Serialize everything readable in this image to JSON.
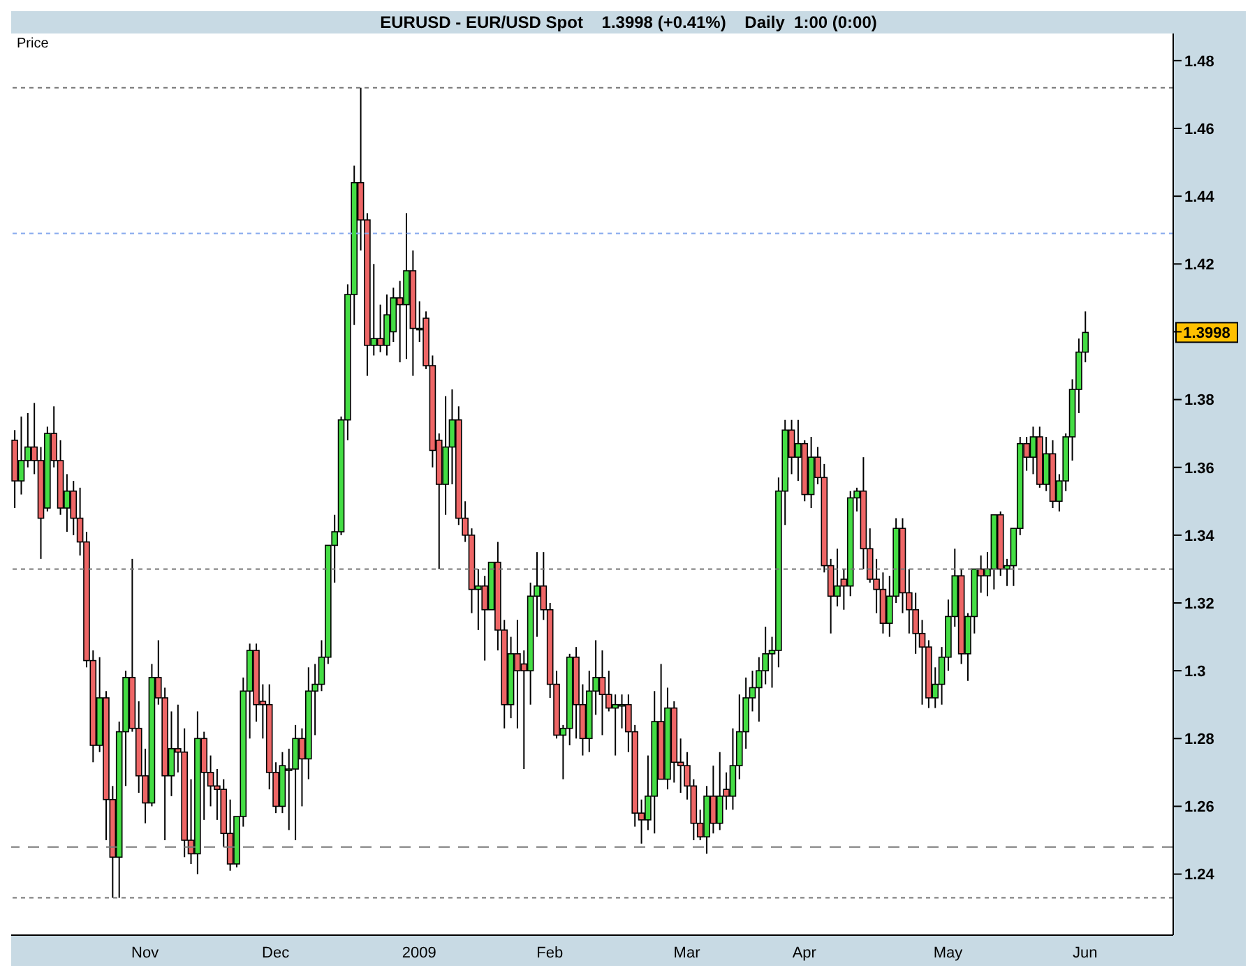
{
  "chart_data": {
    "type": "candlestick",
    "title": "EURUSD - EUR/USD Spot    1.3998 (+0.41%)    Daily  1:00 (0:00)",
    "ylabel": "Price",
    "categories": [
      null,
      null,
      null,
      null,
      null,
      null,
      null,
      null,
      null,
      null,
      null,
      null,
      null,
      null,
      null,
      null,
      null,
      null,
      null,
      null,
      "Nov",
      null,
      null,
      null,
      null,
      null,
      null,
      null,
      null,
      null,
      null,
      null,
      null,
      null,
      null,
      null,
      null,
      null,
      null,
      null,
      "Dec",
      null,
      null,
      null,
      null,
      null,
      null,
      null,
      null,
      null,
      null,
      null,
      null,
      null,
      null,
      null,
      null,
      null,
      null,
      null,
      null,
      null,
      "2009",
      null,
      null,
      null,
      null,
      null,
      null,
      null,
      null,
      null,
      null,
      null,
      null,
      null,
      null,
      null,
      null,
      null,
      null,
      null,
      "Feb",
      null,
      null,
      null,
      null,
      null,
      null,
      null,
      null,
      null,
      null,
      null,
      null,
      null,
      null,
      null,
      null,
      null,
      null,
      null,
      null,
      "Mar",
      null,
      null,
      null,
      null,
      null,
      null,
      null,
      null,
      null,
      null,
      null,
      null,
      null,
      null,
      null,
      null,
      null,
      "Apr",
      null,
      null,
      null,
      null,
      null,
      null,
      null,
      null,
      null,
      null,
      null,
      null,
      null,
      null,
      null,
      null,
      null,
      null,
      null,
      null,
      null,
      "May",
      null,
      null,
      null,
      null,
      null,
      null,
      null,
      null,
      null,
      null,
      null,
      null,
      null,
      null,
      null,
      null,
      null,
      null,
      null,
      null,
      "Jun",
      null,
      null,
      null,
      null,
      null,
      null,
      null,
      null,
      null,
      null,
      null,
      null,
      null
    ],
    "ohlc": [
      [
        1.368,
        1.371,
        1.348,
        1.356
      ],
      [
        1.356,
        1.375,
        1.352,
        1.362
      ],
      [
        1.362,
        1.376,
        1.36,
        1.366
      ],
      [
        1.366,
        1.379,
        1.358,
        1.362
      ],
      [
        1.362,
        1.366,
        1.333,
        1.345
      ],
      [
        1.348,
        1.372,
        1.347,
        1.37
      ],
      [
        1.37,
        1.378,
        1.36,
        1.362
      ],
      [
        1.362,
        1.368,
        1.346,
        1.348
      ],
      [
        1.348,
        1.358,
        1.341,
        1.353
      ],
      [
        1.353,
        1.356,
        1.34,
        1.345
      ],
      [
        1.345,
        1.354,
        1.334,
        1.338
      ],
      [
        1.338,
        1.341,
        1.301,
        1.303
      ],
      [
        1.303,
        1.306,
        1.273,
        1.278
      ],
      [
        1.278,
        1.304,
        1.276,
        1.292
      ],
      [
        1.292,
        1.294,
        1.25,
        1.262
      ],
      [
        1.262,
        1.266,
        1.233,
        1.245
      ],
      [
        1.245,
        1.285,
        1.233,
        1.282
      ],
      [
        1.282,
        1.3,
        1.266,
        1.298
      ],
      [
        1.298,
        1.333,
        1.282,
        1.283
      ],
      [
        1.283,
        1.291,
        1.264,
        1.269
      ],
      [
        1.269,
        1.277,
        1.255,
        1.261
      ],
      [
        1.261,
        1.302,
        1.26,
        1.298
      ],
      [
        1.298,
        1.309,
        1.29,
        1.292
      ],
      [
        1.292,
        1.295,
        1.25,
        1.269
      ],
      [
        1.269,
        1.288,
        1.263,
        1.277
      ],
      [
        1.277,
        1.29,
        1.27,
        1.276
      ],
      [
        1.276,
        1.283,
        1.245,
        1.25
      ],
      [
        1.25,
        1.268,
        1.243,
        1.246
      ],
      [
        1.246,
        1.288,
        1.24,
        1.28
      ],
      [
        1.28,
        1.282,
        1.256,
        1.27
      ],
      [
        1.27,
        1.275,
        1.26,
        1.266
      ],
      [
        1.266,
        1.271,
        1.256,
        1.265
      ],
      [
        1.265,
        1.268,
        1.248,
        1.252
      ],
      [
        1.252,
        1.262,
        1.241,
        1.243
      ],
      [
        1.243,
        1.257,
        1.242,
        1.257
      ],
      [
        1.257,
        1.298,
        1.254,
        1.294
      ],
      [
        1.294,
        1.308,
        1.28,
        1.306
      ],
      [
        1.306,
        1.308,
        1.285,
        1.29
      ],
      [
        1.291,
        1.296,
        1.28,
        1.29
      ],
      [
        1.29,
        1.296,
        1.265,
        1.27
      ],
      [
        1.27,
        1.273,
        1.258,
        1.26
      ],
      [
        1.26,
        1.276,
        1.258,
        1.272
      ],
      [
        1.271,
        1.277,
        1.253,
        1.271
      ],
      [
        1.271,
        1.284,
        1.25,
        1.28
      ],
      [
        1.28,
        1.283,
        1.26,
        1.274
      ],
      [
        1.274,
        1.301,
        1.268,
        1.294
      ],
      [
        1.294,
        1.302,
        1.281,
        1.296
      ],
      [
        1.296,
        1.309,
        1.294,
        1.304
      ],
      [
        1.304,
        1.337,
        1.302,
        1.337
      ],
      [
        1.337,
        1.346,
        1.326,
        1.341
      ],
      [
        1.341,
        1.375,
        1.34,
        1.374
      ],
      [
        1.374,
        1.414,
        1.368,
        1.411
      ],
      [
        1.411,
        1.449,
        1.402,
        1.444
      ],
      [
        1.444,
        1.472,
        1.424,
        1.433
      ],
      [
        1.433,
        1.435,
        1.387,
        1.396
      ],
      [
        1.396,
        1.42,
        1.393,
        1.398
      ],
      [
        1.398,
        1.408,
        1.394,
        1.396
      ],
      [
        1.396,
        1.411,
        1.393,
        1.405
      ],
      [
        1.4,
        1.413,
        1.397,
        1.41
      ],
      [
        1.41,
        1.415,
        1.391,
        1.408
      ],
      [
        1.408,
        1.435,
        1.392,
        1.418
      ],
      [
        1.418,
        1.424,
        1.387,
        1.401
      ],
      [
        1.401,
        1.409,
        1.397,
        1.401
      ],
      [
        1.404,
        1.406,
        1.389,
        1.39
      ],
      [
        1.39,
        1.393,
        1.36,
        1.365
      ],
      [
        1.368,
        1.37,
        1.33,
        1.355
      ],
      [
        1.355,
        1.381,
        1.346,
        1.366
      ],
      [
        1.366,
        1.383,
        1.355,
        1.374
      ],
      [
        1.374,
        1.378,
        1.343,
        1.345
      ],
      [
        1.345,
        1.35,
        1.338,
        1.34
      ],
      [
        1.34,
        1.342,
        1.317,
        1.324
      ],
      [
        1.324,
        1.33,
        1.312,
        1.325
      ],
      [
        1.325,
        1.328,
        1.303,
        1.318
      ],
      [
        1.318,
        1.332,
        1.318,
        1.332
      ],
      [
        1.332,
        1.338,
        1.306,
        1.312
      ],
      [
        1.312,
        1.315,
        1.283,
        1.29
      ],
      [
        1.29,
        1.31,
        1.286,
        1.305
      ],
      [
        1.305,
        1.315,
        1.283,
        1.3
      ],
      [
        1.302,
        1.306,
        1.271,
        1.3
      ],
      [
        1.3,
        1.326,
        1.29,
        1.322
      ],
      [
        1.322,
        1.335,
        1.31,
        1.325
      ],
      [
        1.325,
        1.335,
        1.315,
        1.318
      ],
      [
        1.318,
        1.32,
        1.292,
        1.296
      ],
      [
        1.296,
        1.3,
        1.28,
        1.281
      ],
      [
        1.281,
        1.284,
        1.268,
        1.283
      ],
      [
        1.283,
        1.305,
        1.278,
        1.304
      ],
      [
        1.304,
        1.307,
        1.28,
        1.29
      ],
      [
        1.29,
        1.296,
        1.275,
        1.28
      ],
      [
        1.28,
        1.3,
        1.276,
        1.294
      ],
      [
        1.294,
        1.309,
        1.287,
        1.298
      ],
      [
        1.298,
        1.306,
        1.281,
        1.293
      ],
      [
        1.293,
        1.3,
        1.288,
        1.289
      ],
      [
        1.289,
        1.293,
        1.275,
        1.29
      ],
      [
        1.29,
        1.293,
        1.283,
        1.29
      ],
      [
        1.29,
        1.293,
        1.276,
        1.282
      ],
      [
        1.282,
        1.284,
        1.254,
        1.258
      ],
      [
        1.258,
        1.262,
        1.249,
        1.256
      ],
      [
        1.256,
        1.275,
        1.253,
        1.263
      ],
      [
        1.263,
        1.294,
        1.252,
        1.285
      ],
      [
        1.285,
        1.302,
        1.268,
        1.268
      ],
      [
        1.268,
        1.295,
        1.265,
        1.289
      ],
      [
        1.289,
        1.291,
        1.267,
        1.273
      ],
      [
        1.273,
        1.28,
        1.264,
        1.272
      ],
      [
        1.272,
        1.276,
        1.262,
        1.266
      ],
      [
        1.266,
        1.268,
        1.25,
        1.255
      ],
      [
        1.255,
        1.259,
        1.25,
        1.251
      ],
      [
        1.251,
        1.266,
        1.246,
        1.263
      ],
      [
        1.263,
        1.272,
        1.252,
        1.255
      ],
      [
        1.255,
        1.276,
        1.253,
        1.263
      ],
      [
        1.265,
        1.27,
        1.259,
        1.263
      ],
      [
        1.263,
        1.283,
        1.259,
        1.272
      ],
      [
        1.272,
        1.293,
        1.268,
        1.282
      ],
      [
        1.282,
        1.298,
        1.277,
        1.292
      ],
      [
        1.292,
        1.3,
        1.288,
        1.295
      ],
      [
        1.295,
        1.304,
        1.285,
        1.3
      ],
      [
        1.3,
        1.313,
        1.296,
        1.305
      ],
      [
        1.305,
        1.31,
        1.295,
        1.306
      ],
      [
        1.306,
        1.357,
        1.301,
        1.353
      ],
      [
        1.353,
        1.374,
        1.343,
        1.371
      ],
      [
        1.371,
        1.374,
        1.358,
        1.363
      ],
      [
        1.363,
        1.374,
        1.356,
        1.367
      ],
      [
        1.367,
        1.368,
        1.35,
        1.352
      ],
      [
        1.352,
        1.369,
        1.348,
        1.363
      ],
      [
        1.363,
        1.366,
        1.355,
        1.357
      ],
      [
        1.357,
        1.361,
        1.329,
        1.331
      ],
      [
        1.331,
        1.333,
        1.311,
        1.322
      ],
      [
        1.322,
        1.336,
        1.319,
        1.325
      ],
      [
        1.327,
        1.33,
        1.318,
        1.325
      ],
      [
        1.325,
        1.353,
        1.322,
        1.351
      ],
      [
        1.351,
        1.354,
        1.347,
        1.353
      ],
      [
        1.353,
        1.363,
        1.33,
        1.336
      ],
      [
        1.336,
        1.342,
        1.326,
        1.327
      ],
      [
        1.327,
        1.333,
        1.317,
        1.324
      ],
      [
        1.324,
        1.329,
        1.311,
        1.314
      ],
      [
        1.314,
        1.328,
        1.31,
        1.322
      ],
      [
        1.322,
        1.345,
        1.32,
        1.342
      ],
      [
        1.342,
        1.345,
        1.317,
        1.323
      ],
      [
        1.323,
        1.33,
        1.311,
        1.318
      ],
      [
        1.318,
        1.323,
        1.305,
        1.311
      ],
      [
        1.311,
        1.315,
        1.29,
        1.307
      ],
      [
        1.307,
        1.309,
        1.289,
        1.292
      ],
      [
        1.292,
        1.301,
        1.289,
        1.296
      ],
      [
        1.296,
        1.307,
        1.29,
        1.304
      ],
      [
        1.304,
        1.321,
        1.3,
        1.316
      ],
      [
        1.316,
        1.336,
        1.313,
        1.328
      ],
      [
        1.328,
        1.33,
        1.302,
        1.305
      ],
      [
        1.305,
        1.317,
        1.297,
        1.316
      ],
      [
        1.316,
        1.33,
        1.311,
        1.33
      ],
      [
        1.33,
        1.334,
        1.323,
        1.328
      ],
      [
        1.328,
        1.335,
        1.322,
        1.33
      ],
      [
        1.33,
        1.346,
        1.324,
        1.346
      ],
      [
        1.346,
        1.347,
        1.328,
        1.33
      ],
      [
        1.33,
        1.333,
        1.325,
        1.331
      ],
      [
        1.331,
        1.342,
        1.325,
        1.342
      ],
      [
        1.342,
        1.369,
        1.34,
        1.367
      ],
      [
        1.367,
        1.369,
        1.359,
        1.363
      ],
      [
        1.363,
        1.372,
        1.358,
        1.369
      ],
      [
        1.369,
        1.372,
        1.354,
        1.355
      ],
      [
        1.355,
        1.369,
        1.353,
        1.364
      ],
      [
        1.364,
        1.368,
        1.348,
        1.35
      ],
      [
        1.35,
        1.358,
        1.347,
        1.356
      ],
      [
        1.356,
        1.37,
        1.353,
        1.369
      ],
      [
        1.369,
        1.386,
        1.362,
        1.383
      ],
      [
        1.383,
        1.398,
        1.376,
        1.394
      ],
      [
        1.394,
        1.406,
        1.391,
        1.3998
      ],
      null,
      null,
      null,
      null,
      null,
      null,
      null,
      null,
      null,
      null,
      null,
      null,
      null
    ],
    "colors": [
      "#ee6666",
      "#44dd44",
      "#44dd44",
      "#ee6666",
      "#ee6666",
      "#44dd44",
      "#ee6666",
      "#ee6666",
      "#44dd44",
      "#ee6666",
      "#ee6666",
      "#ee6666",
      "#ee6666",
      "#44dd44",
      "#ee6666",
      "#ee6666",
      "#44dd44",
      "#44dd44",
      "#ee6666",
      "#ee6666",
      "#ee6666",
      "#44dd44",
      "#ee6666",
      "#ee6666",
      "#44dd44",
      "#ee6666",
      "#ee6666",
      "#ee6666",
      "#44dd44",
      "#ee6666",
      "#ee6666",
      "#ee6666",
      "#ee6666",
      "#ee6666",
      "#44dd44",
      "#44dd44",
      "#44dd44",
      "#ee6666",
      "#ee6666",
      "#ee6666",
      "#ee6666",
      "#44dd44",
      "#44dd44",
      "#44dd44",
      "#ee6666",
      "#44dd44",
      "#44dd44",
      "#44dd44",
      "#44dd44",
      "#44dd44",
      "#44dd44",
      "#44dd44",
      "#44dd44",
      "#ee6666",
      "#ee6666",
      "#44dd44",
      "#ee6666",
      "#44dd44",
      "#44dd44",
      "#ee6666",
      "#44dd44",
      "#ee6666",
      "#44dd44",
      "#ee6666",
      "#ee6666",
      "#ee6666",
      "#44dd44",
      "#44dd44",
      "#ee6666",
      "#ee6666",
      "#ee6666",
      "#44dd44",
      "#ee6666",
      "#44dd44",
      "#ee6666",
      "#ee6666",
      "#44dd44",
      "#ee6666",
      "#ee6666",
      "#44dd44",
      "#44dd44",
      "#ee6666",
      "#ee6666",
      "#ee6666",
      "#44dd44",
      "#44dd44",
      "#ee6666",
      "#ee6666",
      "#44dd44",
      "#44dd44",
      "#ee6666",
      "#ee6666",
      "#44dd44",
      "#44dd44",
      "#ee6666",
      "#ee6666",
      "#ee6666",
      "#44dd44",
      "#44dd44",
      "#ee6666",
      "#44dd44",
      "#ee6666",
      "#ee6666",
      "#ee6666",
      "#ee6666",
      "#ee6666",
      "#44dd44",
      "#ee6666",
      "#44dd44",
      "#ee6666",
      "#44dd44",
      "#44dd44",
      "#44dd44",
      "#44dd44",
      "#44dd44",
      "#44dd44",
      "#44dd44",
      "#44dd44",
      "#44dd44",
      "#ee6666",
      "#44dd44",
      "#ee6666",
      "#44dd44",
      "#ee6666",
      "#ee6666",
      "#ee6666",
      "#44dd44",
      "#ee6666",
      "#44dd44",
      "#44dd44",
      "#ee6666",
      "#ee6666",
      "#ee6666",
      "#ee6666",
      "#44dd44",
      "#44dd44",
      "#ee6666",
      "#ee6666",
      "#ee6666",
      "#ee6666",
      "#ee6666",
      "#44dd44",
      "#44dd44",
      "#44dd44",
      "#44dd44",
      "#ee6666",
      "#44dd44",
      "#44dd44",
      "#ee6666",
      "#44dd44",
      "#44dd44",
      "#ee6666",
      "#44dd44",
      "#44dd44",
      "#44dd44",
      "#ee6666",
      "#44dd44",
      "#ee6666",
      "#44dd44",
      "#ee6666",
      "#44dd44",
      "#44dd44",
      "#44dd44",
      "#44dd44",
      "#44dd44",
      null,
      null,
      null,
      null,
      null,
      null,
      null,
      null,
      null,
      null,
      null,
      null,
      null
    ],
    "ylim": [
      1.222,
      1.488
    ],
    "yticks": [
      1.24,
      1.26,
      1.28,
      1.3,
      1.32,
      1.34,
      1.36,
      1.38,
      {
        "value": 1.4,
        "label": null
      },
      1.42,
      1.44,
      1.46,
      1.48
    ],
    "ref_lines": [
      {
        "axis": "y",
        "value": 1.472,
        "line_style": "dotted",
        "color": "#777777"
      },
      {
        "axis": "y",
        "value": 1.429,
        "line_style": "dotted",
        "color": "#88aaee"
      },
      {
        "axis": "y",
        "value": 1.33,
        "line_style": "dotted",
        "color": "#777777"
      },
      {
        "axis": "y",
        "value": 1.248,
        "line_style": "dashed",
        "color": "#777777"
      },
      {
        "axis": "y",
        "value": 1.233,
        "line_style": "dotted",
        "color": "#777777"
      }
    ],
    "annotations": [
      {
        "text": "1.3998",
        "y": 1.3998
      }
    ],
    "grid": false,
    "legend": false
  }
}
